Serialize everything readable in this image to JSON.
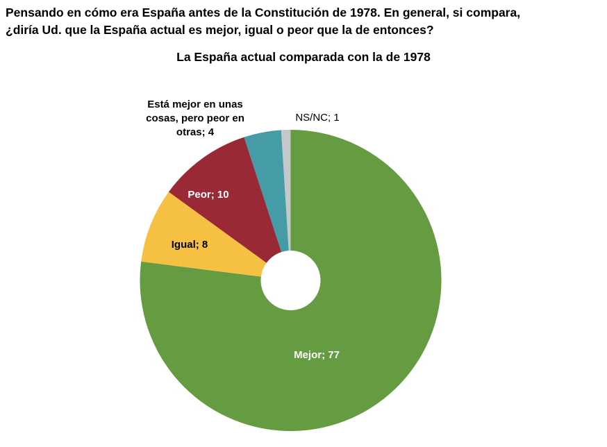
{
  "question": {
    "line1": "Pensando en cómo era España antes de la Constitución de 1978. En general, si compara,",
    "line2": "¿diría Ud. que la España actual es mejor, igual o peor que la de entonces?"
  },
  "chart_data": {
    "type": "pie",
    "variant": "donut",
    "title": "La España actual comparada con la de 1978",
    "start": "top",
    "direction": "clockwise",
    "slices": [
      {
        "label": "Mejor; 77",
        "name": "Mejor",
        "value": 77,
        "color": "#659C41",
        "label_color": "#FFFFFF"
      },
      {
        "label": "Igual; 8",
        "name": "Igual",
        "value": 8,
        "color": "#F6C142",
        "label_color": "#000000"
      },
      {
        "label": "Peor; 10",
        "name": "Peor",
        "value": 10,
        "color": "#992A35",
        "label_color": "#FFFFFF"
      },
      {
        "label_lines": [
          "Está mejor en unas",
          "cosas, pero peor en",
          "otras; 4"
        ],
        "name": "Está mejor en unas cosas, pero peor en otras",
        "value": 4,
        "color": "#459BA6",
        "label_color": "#000000"
      },
      {
        "label": "NS/NC; 1",
        "name": "NS/NC",
        "value": 1,
        "color": "#C5C8CB",
        "label_color": "#000000"
      }
    ]
  }
}
